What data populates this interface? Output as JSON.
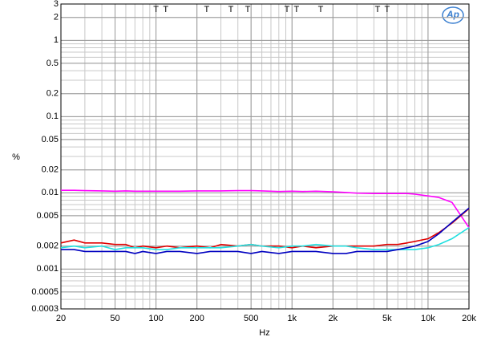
{
  "chart_data": {
    "type": "line",
    "x_label": "Hz",
    "y_label": "%",
    "logo": "Ap",
    "xscale": "log",
    "yscale": "log",
    "grid": true,
    "minor_grid": true,
    "xlim": [
      20,
      20000
    ],
    "ylim": [
      0.0003,
      3
    ],
    "xticks": [
      20,
      50,
      100,
      200,
      500,
      {
        "value": 1000,
        "label": "1k"
      },
      {
        "value": 2000,
        "label": "2k"
      },
      {
        "value": 5000,
        "label": "5k"
      },
      {
        "value": 10000,
        "label": "10k"
      },
      {
        "value": 20000,
        "label": "20k"
      }
    ],
    "yticks": [
      3,
      2,
      1,
      0.5,
      0.2,
      0.1,
      0.05,
      0.02,
      0.01,
      0.005,
      0.002,
      0.001,
      0.0005,
      0.0003
    ],
    "markers": {
      "label": "T",
      "x": [
        100,
        118,
        236,
        355,
        472,
        918,
        1080,
        1624,
        4254,
        5000
      ]
    },
    "x": [
      20,
      25,
      30,
      40,
      50,
      60,
      70,
      80,
      100,
      120,
      150,
      200,
      250,
      300,
      400,
      500,
      600,
      800,
      1000,
      1200,
      1500,
      2000,
      2500,
      3000,
      4000,
      5000,
      6000,
      7000,
      8000,
      10000,
      12000,
      15000,
      20000
    ],
    "series": [
      {
        "color": "#ff00ff",
        "values": [
          0.0108,
          0.0108,
          0.0107,
          0.0106,
          0.0105,
          0.0106,
          0.0105,
          0.0105,
          0.0105,
          0.0105,
          0.0105,
          0.0106,
          0.0106,
          0.0106,
          0.0107,
          0.0107,
          0.0106,
          0.0104,
          0.0105,
          0.0104,
          0.0105,
          0.0103,
          0.0101,
          0.0099,
          0.0098,
          0.0098,
          0.0098,
          0.0098,
          0.0096,
          0.0091,
          0.0087,
          0.0075,
          0.0035
        ]
      },
      {
        "color": "#e00000",
        "values": [
          0.0022,
          0.0024,
          0.0022,
          0.0022,
          0.0021,
          0.0021,
          0.0019,
          0.002,
          0.0019,
          0.002,
          0.0019,
          0.002,
          0.0019,
          0.0021,
          0.002,
          0.0021,
          0.002,
          0.002,
          0.0019,
          0.002,
          0.0019,
          0.002,
          0.002,
          0.002,
          0.002,
          0.0021,
          0.0021,
          0.0022,
          0.0023,
          0.0025,
          0.003,
          0.004,
          0.0062
        ]
      },
      {
        "color": "#22e0e0",
        "values": [
          0.0019,
          0.002,
          0.0019,
          0.002,
          0.0018,
          0.0019,
          0.0019,
          0.0019,
          0.0018,
          0.0018,
          0.0019,
          0.0019,
          0.0019,
          0.0019,
          0.002,
          0.0021,
          0.002,
          0.0019,
          0.002,
          0.002,
          0.0021,
          0.002,
          0.002,
          0.0019,
          0.0018,
          0.0018,
          0.0018,
          0.0018,
          0.0018,
          0.0019,
          0.0021,
          0.0025,
          0.0035
        ]
      },
      {
        "color": "#0000c0",
        "values": [
          0.0018,
          0.0018,
          0.0017,
          0.0017,
          0.0017,
          0.0017,
          0.0016,
          0.0017,
          0.0016,
          0.0017,
          0.0017,
          0.0016,
          0.0017,
          0.0017,
          0.0017,
          0.0016,
          0.0017,
          0.0016,
          0.0017,
          0.0017,
          0.0017,
          0.0016,
          0.0016,
          0.0017,
          0.0017,
          0.0017,
          0.0018,
          0.0019,
          0.002,
          0.0023,
          0.0029,
          0.0041,
          0.0063
        ]
      }
    ]
  }
}
